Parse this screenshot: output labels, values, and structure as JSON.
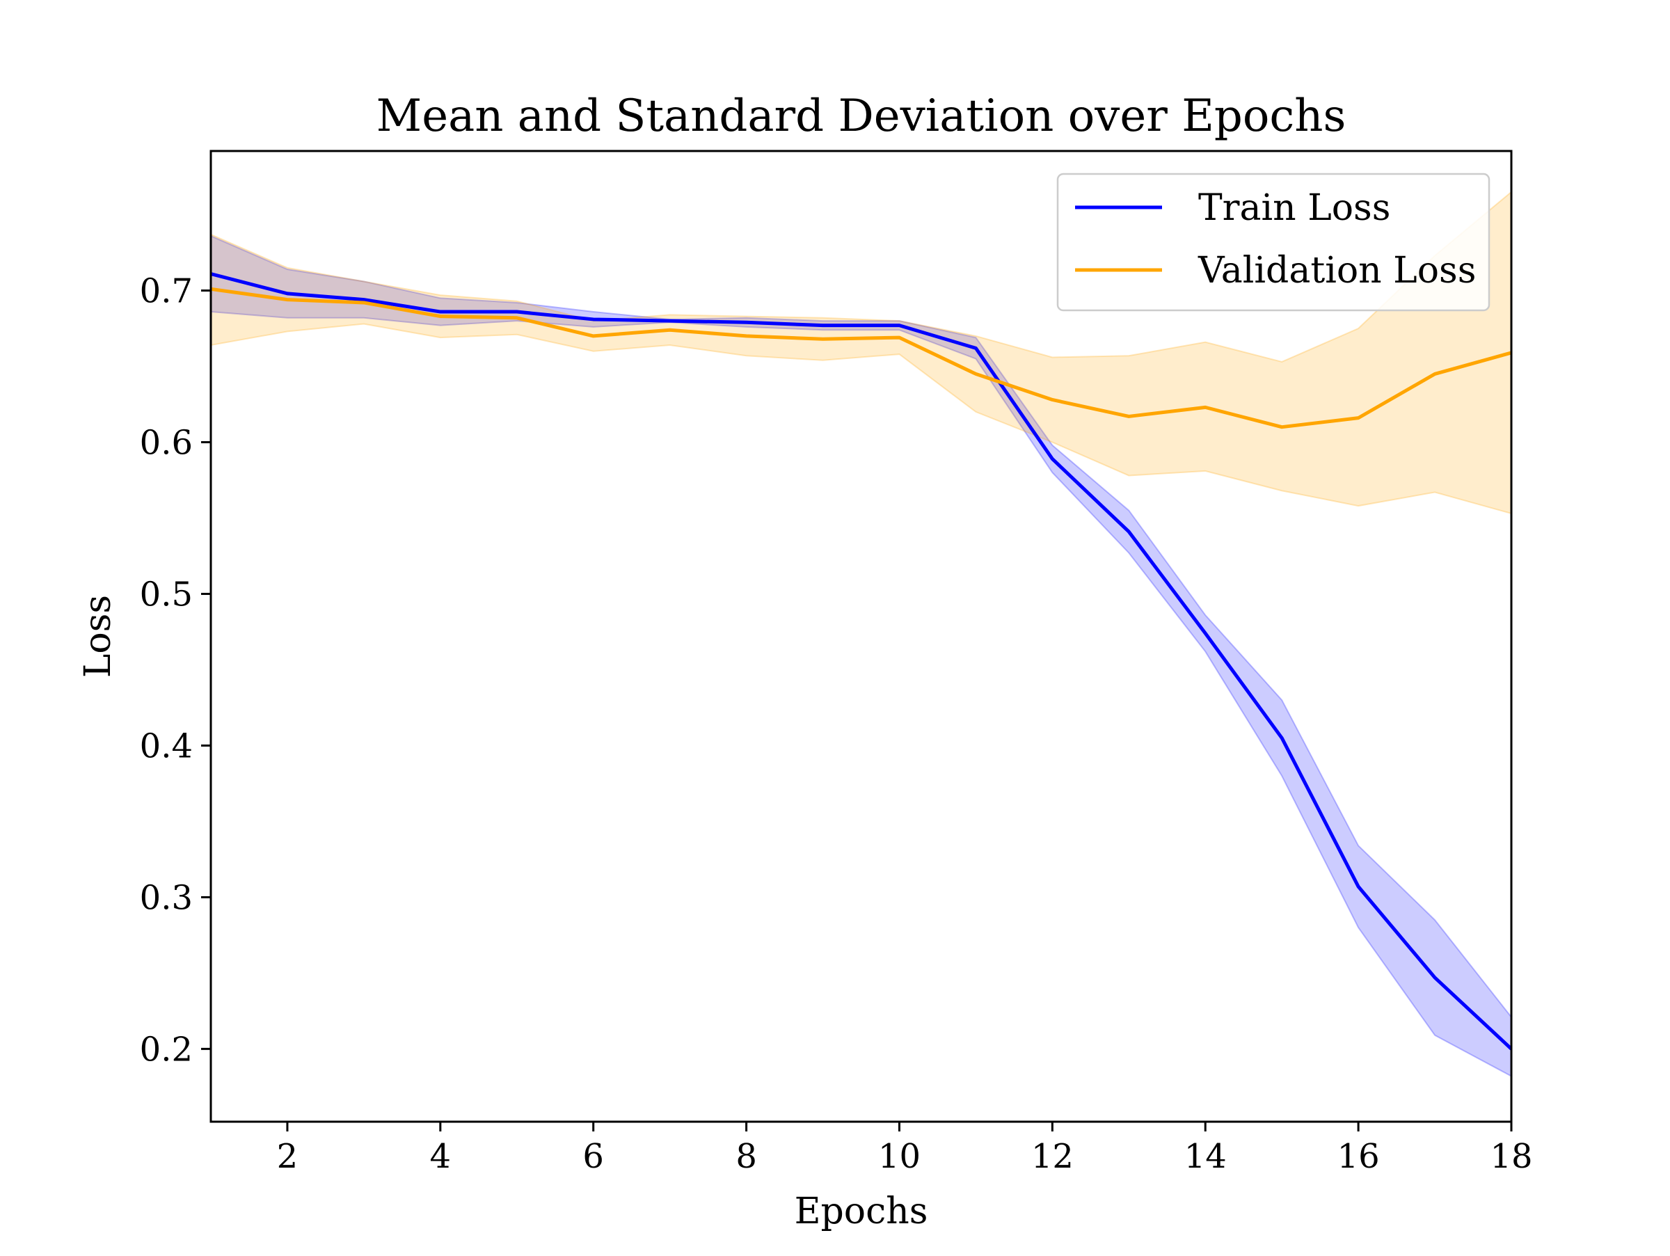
{
  "chart_data": {
    "type": "line",
    "title": "Mean and Standard Deviation over Epochs",
    "xlabel": "Epochs",
    "ylabel": "Loss",
    "xlim": [
      1,
      18
    ],
    "ylim": [
      0.152,
      0.792
    ],
    "xticks": [
      2,
      4,
      6,
      8,
      10,
      12,
      14,
      16,
      18
    ],
    "yticks": [
      0.2,
      0.3,
      0.4,
      0.5,
      0.6,
      0.7
    ],
    "xtick_labels": [
      "2",
      "4",
      "6",
      "8",
      "10",
      "12",
      "14",
      "16",
      "18"
    ],
    "ytick_labels": [
      "0.2",
      "0.3",
      "0.4",
      "0.5",
      "0.6",
      "0.7"
    ],
    "grid": false,
    "legend_position": "top-right",
    "x": [
      1,
      2,
      3,
      4,
      5,
      6,
      7,
      8,
      9,
      10,
      11,
      12,
      13,
      14,
      15,
      16,
      17,
      18
    ],
    "series": [
      {
        "name": "Train Loss",
        "color": "#0000ff",
        "band_color": "#0000ff",
        "mean": [
          0.711,
          0.698,
          0.694,
          0.686,
          0.686,
          0.681,
          0.68,
          0.679,
          0.677,
          0.677,
          0.662,
          0.589,
          0.541,
          0.474,
          0.405,
          0.307,
          0.247,
          0.2
        ],
        "lower": [
          0.686,
          0.682,
          0.682,
          0.677,
          0.68,
          0.676,
          0.679,
          0.676,
          0.674,
          0.674,
          0.655,
          0.58,
          0.527,
          0.462,
          0.38,
          0.28,
          0.209,
          0.182
        ],
        "upper": [
          0.736,
          0.714,
          0.706,
          0.695,
          0.692,
          0.686,
          0.681,
          0.682,
          0.68,
          0.68,
          0.669,
          0.598,
          0.555,
          0.486,
          0.43,
          0.334,
          0.285,
          0.221
        ]
      },
      {
        "name": "Validation Loss",
        "color": "#ffa500",
        "band_color": "#ffa500",
        "mean": [
          0.701,
          0.694,
          0.692,
          0.683,
          0.682,
          0.67,
          0.674,
          0.67,
          0.668,
          0.669,
          0.645,
          0.628,
          0.617,
          0.623,
          0.61,
          0.616,
          0.645,
          0.659
        ],
        "lower": [
          0.664,
          0.673,
          0.678,
          0.669,
          0.671,
          0.66,
          0.664,
          0.657,
          0.654,
          0.658,
          0.62,
          0.6,
          0.578,
          0.581,
          0.568,
          0.558,
          0.567,
          0.553
        ],
        "upper": [
          0.737,
          0.715,
          0.706,
          0.697,
          0.693,
          0.68,
          0.684,
          0.683,
          0.682,
          0.68,
          0.67,
          0.656,
          0.657,
          0.666,
          0.653,
          0.675,
          0.723,
          0.765
        ]
      }
    ]
  }
}
